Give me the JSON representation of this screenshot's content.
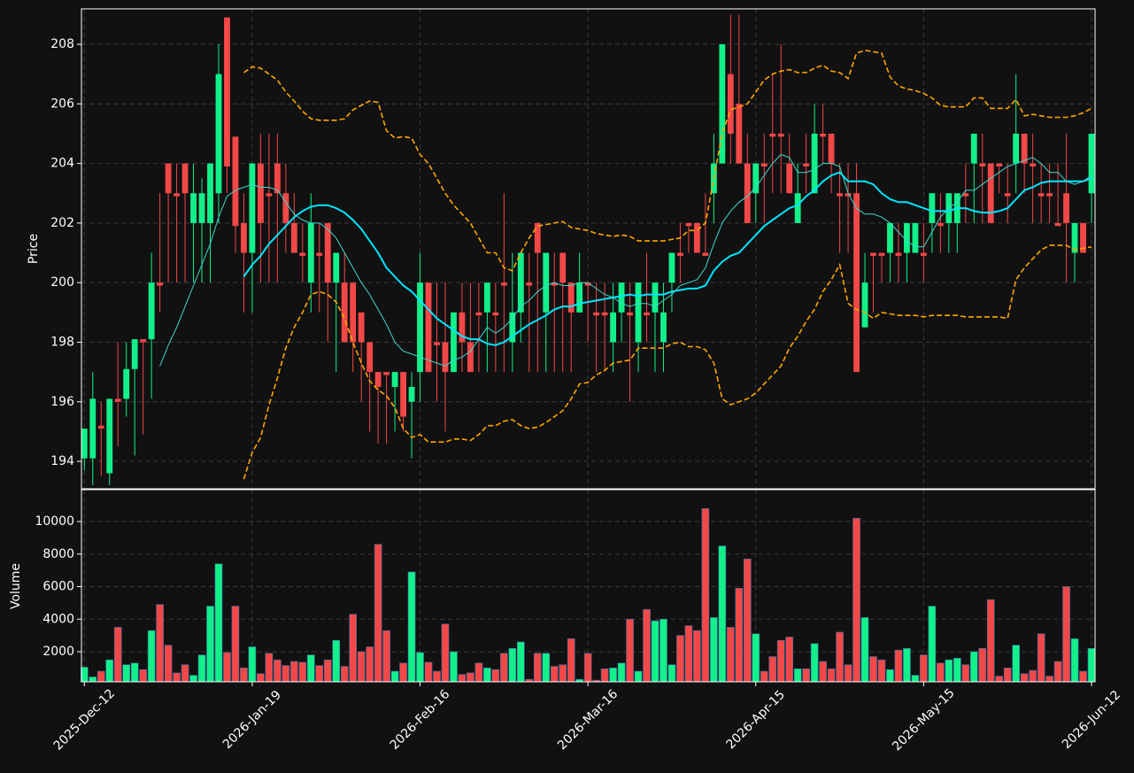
{
  "chart_data": {
    "type": "candlestick",
    "ylabel": "Price",
    "volume_ylabel": "Volume",
    "grid": true,
    "up_color": "#12f08a",
    "down_color": "#f24848",
    "ylim": [
      193.08,
      209.19
    ],
    "yticks": [
      194,
      196,
      198,
      200,
      202,
      204,
      206,
      208
    ],
    "volume_ylim": [
      150,
      11960
    ],
    "volume_yticks": [
      2000,
      4000,
      6000,
      8000,
      10000
    ],
    "categories": [
      "2025-Dec-12",
      null,
      null,
      null,
      null,
      null,
      null,
      null,
      null,
      null,
      null,
      null,
      null,
      null,
      null,
      null,
      null,
      null,
      null,
      null,
      "2026-Jan-19",
      null,
      null,
      null,
      null,
      null,
      null,
      null,
      null,
      null,
      null,
      null,
      null,
      null,
      null,
      null,
      null,
      null,
      null,
      null,
      "2026-Feb-16",
      null,
      null,
      null,
      null,
      null,
      null,
      null,
      null,
      null,
      null,
      null,
      null,
      null,
      null,
      null,
      null,
      null,
      null,
      null,
      "2026-Mar-16",
      null,
      null,
      null,
      null,
      null,
      null,
      null,
      null,
      null,
      null,
      null,
      null,
      null,
      null,
      null,
      null,
      null,
      null,
      null,
      "2026-Apr-15",
      null,
      null,
      null,
      null,
      null,
      null,
      null,
      null,
      null,
      null,
      null,
      null,
      null,
      null,
      null,
      null,
      null,
      null,
      null,
      "2026-May-15",
      null,
      null,
      null,
      null,
      null,
      null,
      null,
      null,
      null,
      null,
      null,
      null,
      null,
      null,
      null,
      null,
      null,
      null,
      null,
      "2026-Jun-12"
    ],
    "open": [
      194.1,
      194.1,
      195.2,
      193.6,
      196.1,
      196.1,
      197.1,
      198.1,
      198.1,
      200.0,
      204.0,
      203.0,
      204.0,
      202.0,
      202.0,
      202.0,
      203.0,
      208.9,
      204.9,
      202.0,
      201.0,
      204.0,
      203.0,
      204.0,
      203.0,
      202.0,
      201.0,
      200.0,
      201.0,
      202.0,
      200.0,
      200.0,
      200.0,
      199.0,
      198.0,
      197.0,
      197.0,
      196.5,
      197.0,
      196.0,
      197.0,
      200.0,
      198.0,
      198.0,
      197.0,
      199.0,
      198.0,
      199.0,
      199.0,
      199.0,
      200.0,
      198.0,
      199.0,
      200.0,
      202.0,
      199.0,
      200.0,
      201.0,
      200.0,
      199.0,
      200.0,
      199.0,
      199.0,
      198.0,
      199.0,
      199.0,
      198.0,
      199.0,
      199.0,
      198.0,
      200.0,
      201.0,
      202.0,
      202.0,
      201.0,
      203.0,
      204.0,
      207.0,
      206.0,
      204.0,
      203.0,
      204.0,
      205.0,
      205.0,
      204.0,
      202.0,
      204.0,
      203.0,
      205.0,
      205.0,
      203.0,
      203.0,
      203.0,
      198.5,
      201.0,
      201.0,
      201.0,
      201.0,
      201.0,
      201.0,
      201.0,
      202.0,
      202.0,
      202.0,
      202.0,
      203.0,
      204.0,
      204.0,
      204.0,
      204.0,
      203.0,
      204.0,
      205.0,
      204.0,
      203.0,
      203.0,
      202.0,
      203.0,
      201.0,
      202.0,
      203.0
    ],
    "close": [
      195.1,
      196.1,
      195.1,
      196.1,
      196.0,
      197.1,
      198.1,
      198.0,
      200.0,
      199.9,
      203.0,
      202.9,
      203.0,
      203.0,
      203.0,
      204.0,
      207.0,
      203.9,
      201.9,
      201.0,
      204.0,
      202.0,
      202.9,
      203.0,
      202.0,
      201.0,
      200.9,
      202.0,
      200.9,
      200.0,
      201.0,
      198.0,
      198.0,
      198.0,
      197.0,
      196.5,
      196.9,
      197.0,
      195.5,
      196.5,
      200.0,
      197.0,
      197.9,
      197.0,
      199.0,
      198.0,
      197.0,
      198.9,
      200.0,
      198.9,
      199.9,
      199.0,
      201.0,
      199.9,
      201.0,
      201.0,
      199.9,
      200.0,
      199.0,
      200.0,
      199.9,
      198.9,
      198.9,
      199.0,
      200.0,
      198.9,
      200.0,
      198.9,
      200.0,
      199.0,
      201.0,
      200.9,
      201.9,
      201.0,
      200.9,
      204.0,
      208.0,
      205.0,
      204.0,
      202.0,
      204.0,
      203.9,
      204.9,
      204.9,
      203.0,
      203.0,
      203.9,
      205.0,
      204.9,
      204.0,
      202.9,
      202.9,
      197.0,
      200.0,
      200.9,
      200.9,
      202.0,
      200.9,
      202.0,
      202.0,
      200.9,
      203.0,
      201.9,
      203.0,
      203.0,
      202.9,
      205.0,
      203.9,
      202.0,
      203.9,
      202.9,
      205.0,
      204.0,
      203.9,
      202.9,
      202.9,
      201.9,
      202.0,
      202.0,
      201.0,
      205.0
    ],
    "high": [
      195.1,
      197.0,
      196.0,
      196.1,
      198.0,
      198.0,
      198.1,
      198.1,
      201.0,
      203.0,
      204.0,
      204.0,
      204.0,
      204.0,
      203.5,
      204.0,
      208.0,
      208.9,
      204.9,
      203.0,
      204.0,
      205.0,
      205.0,
      205.0,
      204.0,
      203.0,
      202.0,
      203.0,
      202.0,
      202.0,
      201.0,
      201.0,
      200.0,
      199.0,
      198.0,
      197.0,
      197.0,
      197.0,
      197.0,
      197.0,
      201.0,
      200.0,
      200.0,
      200.0,
      199.0,
      200.0,
      200.0,
      200.0,
      200.0,
      200.0,
      203.0,
      201.0,
      201.0,
      201.0,
      202.0,
      201.0,
      201.0,
      201.0,
      200.0,
      201.0,
      200.0,
      200.0,
      200.0,
      200.0,
      200.0,
      200.0,
      200.0,
      201.0,
      200.0,
      200.0,
      201.0,
      202.0,
      202.0,
      202.0,
      203.0,
      205.0,
      208.0,
      209.0,
      209.0,
      205.0,
      204.0,
      205.0,
      207.0,
      208.0,
      205.0,
      204.0,
      205.0,
      206.0,
      206.0,
      205.0,
      204.0,
      204.0,
      204.0,
      201.0,
      201.0,
      201.0,
      202.0,
      202.0,
      202.0,
      202.0,
      202.0,
      203.0,
      203.0,
      203.0,
      203.0,
      204.0,
      205.0,
      205.0,
      204.0,
      204.0,
      204.0,
      207.0,
      205.0,
      205.0,
      204.0,
      204.0,
      204.0,
      205.0,
      202.0,
      202.0,
      205.0
    ],
    "low": [
      193.7,
      193.2,
      193.5,
      193.2,
      194.5,
      195.5,
      194.2,
      194.9,
      196.1,
      199.0,
      200.0,
      200.0,
      200.0,
      200.0,
      200.0,
      200.0,
      202.0,
      203.0,
      201.0,
      199.0,
      199.0,
      200.0,
      200.0,
      200.0,
      201.0,
      201.0,
      200.0,
      199.0,
      199.0,
      198.0,
      197.0,
      198.0,
      197.0,
      196.0,
      195.0,
      194.6,
      194.6,
      195.0,
      195.0,
      194.1,
      196.0,
      197.0,
      196.0,
      195.0,
      197.0,
      197.0,
      197.0,
      197.0,
      197.0,
      197.0,
      197.0,
      197.0,
      198.0,
      197.0,
      197.0,
      197.0,
      197.0,
      197.0,
      197.0,
      199.0,
      198.0,
      197.0,
      197.0,
      197.0,
      198.0,
      196.0,
      197.0,
      198.0,
      197.0,
      197.0,
      199.0,
      200.0,
      201.0,
      201.0,
      201.0,
      202.0,
      204.0,
      204.0,
      204.0,
      202.0,
      202.0,
      202.0,
      203.0,
      203.0,
      203.0,
      202.0,
      203.0,
      203.0,
      204.0,
      203.0,
      201.0,
      201.0,
      197.0,
      198.5,
      199.0,
      200.0,
      200.0,
      200.0,
      200.0,
      201.0,
      200.0,
      201.0,
      201.0,
      201.0,
      201.0,
      202.0,
      202.0,
      202.0,
      202.0,
      203.0,
      202.0,
      203.0,
      203.0,
      202.0,
      202.0,
      202.0,
      201.9,
      200.0,
      200.0,
      201.0,
      202.0
    ],
    "volume": [
      1050,
      450,
      800,
      1500,
      3500,
      1200,
      1300,
      900,
      3300,
      4900,
      2400,
      700,
      1200,
      550,
      1800,
      4800,
      7400,
      1950,
      4800,
      1000,
      2300,
      650,
      1900,
      1500,
      1150,
      1400,
      1350,
      1800,
      1150,
      1500,
      2700,
      1100,
      4300,
      2000,
      2300,
      8600,
      3300,
      800,
      1300,
      6900,
      1950,
      1350,
      800,
      3700,
      2000,
      600,
      700,
      1300,
      1000,
      900,
      1900,
      2200,
      2600,
      300,
      1900,
      1900,
      1100,
      1200,
      2800,
      300,
      1900,
      250,
      950,
      1000,
      1300,
      4000,
      800,
      4600,
      3900,
      4000,
      1200,
      3000,
      3600,
      3300,
      10800,
      4100,
      8500,
      3500,
      5900,
      7700,
      3100,
      800,
      1700,
      2700,
      2900,
      950,
      950,
      2500,
      1400,
      950,
      3200,
      1200,
      10200,
      4100,
      1700,
      1500,
      900,
      2100,
      2200,
      550,
      1800,
      4800,
      1300,
      1500,
      1600,
      1200,
      2000,
      2200,
      5200,
      500,
      1000,
      2400,
      650,
      850,
      3100,
      500,
      1400,
      6000,
      2800,
      800,
      2200
    ],
    "overlays": [
      {
        "color": "#00e5ff",
        "dashed": false,
        "values": [
          null,
          null,
          null,
          null,
          null,
          null,
          null,
          null,
          null,
          null,
          null,
          null,
          null,
          null,
          null,
          null,
          null,
          null,
          null,
          200.2,
          200.6,
          200.9,
          201.3,
          201.6,
          201.9,
          202.2,
          202.4,
          202.55,
          202.6,
          202.6,
          202.5,
          202.35,
          202.1,
          201.8,
          201.4,
          201.0,
          200.5,
          200.2,
          199.9,
          199.7,
          199.4,
          199.1,
          198.8,
          198.6,
          198.4,
          198.2,
          198.1,
          198.1,
          197.95,
          197.9,
          198.0,
          198.2,
          198.4,
          198.6,
          198.75,
          198.9,
          199.1,
          199.2,
          199.2,
          199.3,
          199.35,
          199.4,
          199.45,
          199.5,
          199.55,
          199.6,
          199.55,
          199.6,
          199.6,
          199.6,
          199.7,
          199.75,
          199.8,
          199.8,
          199.9,
          200.4,
          200.7,
          200.9,
          201.0,
          201.3,
          201.6,
          201.9,
          202.1,
          202.3,
          202.5,
          202.6,
          202.9,
          203.1,
          203.4,
          203.6,
          203.7,
          203.4,
          203.4,
          203.4,
          203.3,
          203.0,
          202.8,
          202.7,
          202.7,
          202.6,
          202.5,
          202.4,
          202.4,
          202.4,
          202.5,
          202.5,
          202.4,
          202.35,
          202.35,
          202.4,
          202.5,
          202.8,
          203.1,
          203.2,
          203.35,
          203.4,
          203.4,
          203.4,
          203.4,
          203.4,
          203.5
        ]
      },
      {
        "color": "#3fd8d0",
        "dashed": false,
        "values": [
          null,
          null,
          null,
          null,
          null,
          null,
          null,
          null,
          null,
          197.2,
          197.9,
          198.5,
          199.2,
          199.9,
          200.6,
          201.3,
          202.2,
          202.9,
          203.1,
          203.2,
          203.3,
          203.2,
          203.2,
          203.1,
          202.7,
          202.3,
          202.1,
          202.0,
          202.0,
          201.8,
          201.5,
          201.0,
          200.5,
          200.0,
          199.6,
          199.1,
          198.6,
          198.0,
          197.7,
          197.6,
          197.5,
          197.4,
          197.3,
          197.2,
          197.4,
          197.5,
          197.7,
          198.1,
          198.5,
          198.3,
          198.5,
          198.8,
          199.2,
          199.4,
          199.7,
          199.9,
          200.0,
          199.9,
          199.9,
          200.0,
          200.0,
          199.8,
          199.6,
          199.5,
          199.3,
          199.2,
          199.3,
          199.3,
          199.2,
          199.4,
          199.6,
          199.9,
          200.0,
          200.1,
          200.5,
          201.3,
          202.0,
          202.4,
          202.7,
          202.9,
          203.2,
          203.6,
          204.0,
          204.3,
          204.2,
          203.7,
          203.7,
          203.8,
          204.0,
          204.0,
          203.9,
          203.0,
          202.5,
          202.3,
          202.3,
          202.2,
          202.0,
          201.7,
          201.4,
          201.2,
          201.2,
          201.7,
          202.2,
          202.5,
          202.7,
          203.1,
          203.1,
          203.3,
          203.5,
          203.7,
          203.9,
          204.0,
          204.1,
          204.2,
          204.0,
          203.7,
          203.7,
          203.4,
          203.3,
          203.4,
          203.6
        ]
      },
      {
        "color": "#ffa500",
        "dashed": true,
        "values": [
          null,
          null,
          null,
          null,
          null,
          null,
          null,
          null,
          null,
          null,
          null,
          null,
          null,
          null,
          null,
          null,
          null,
          null,
          null,
          207.05,
          207.25,
          207.2,
          207.0,
          206.8,
          206.4,
          206.1,
          205.75,
          205.5,
          205.45,
          205.45,
          205.45,
          205.5,
          205.8,
          205.95,
          206.1,
          206.05,
          205.1,
          204.85,
          204.9,
          204.85,
          204.3,
          204.0,
          203.5,
          203.0,
          202.6,
          202.3,
          202.0,
          201.5,
          201.0,
          201.0,
          200.5,
          200.4,
          201.0,
          201.5,
          201.9,
          201.95,
          202.0,
          202.05,
          201.85,
          201.8,
          201.75,
          201.65,
          201.6,
          201.55,
          201.6,
          201.55,
          201.4,
          201.4,
          201.4,
          201.4,
          201.45,
          201.5,
          201.75,
          201.75,
          202.0,
          203.5,
          205.0,
          205.8,
          205.9,
          206.0,
          206.4,
          206.8,
          207.0,
          207.1,
          207.15,
          207.05,
          207.05,
          207.2,
          207.3,
          207.1,
          207.05,
          206.85,
          207.7,
          207.8,
          207.75,
          207.7,
          206.9,
          206.6,
          206.5,
          206.45,
          206.35,
          206.2,
          205.95,
          205.9,
          205.9,
          205.9,
          206.2,
          206.2,
          205.85,
          205.85,
          205.85,
          206.15,
          205.6,
          205.65,
          205.6,
          205.55,
          205.55,
          205.55,
          205.6,
          205.7,
          205.85
        ]
      },
      {
        "color": "#ffa500",
        "dashed": true,
        "values": [
          null,
          null,
          null,
          null,
          null,
          null,
          null,
          null,
          null,
          null,
          null,
          null,
          null,
          null,
          null,
          null,
          null,
          null,
          null,
          193.4,
          194.3,
          194.8,
          195.9,
          196.8,
          197.8,
          198.5,
          199.0,
          199.6,
          199.7,
          199.6,
          199.35,
          198.8,
          198.0,
          197.3,
          196.7,
          196.4,
          196.2,
          195.8,
          195.1,
          194.8,
          194.9,
          194.65,
          194.65,
          194.65,
          194.75,
          194.75,
          194.7,
          194.9,
          195.2,
          195.2,
          195.35,
          195.4,
          195.2,
          195.1,
          195.15,
          195.3,
          195.5,
          195.7,
          196.1,
          196.6,
          196.65,
          196.9,
          197.05,
          197.3,
          197.35,
          197.4,
          197.8,
          197.8,
          197.8,
          197.8,
          197.95,
          198.0,
          197.85,
          197.85,
          197.75,
          197.3,
          196.1,
          195.9,
          196.0,
          196.1,
          196.3,
          196.6,
          196.9,
          197.2,
          197.8,
          198.2,
          198.7,
          199.1,
          199.7,
          200.1,
          200.6,
          199.3,
          199.1,
          199.0,
          198.8,
          199.0,
          198.95,
          198.9,
          198.9,
          198.9,
          198.85,
          198.9,
          198.9,
          198.9,
          198.9,
          198.85,
          198.85,
          198.85,
          198.85,
          198.85,
          198.8,
          200.1,
          200.5,
          200.8,
          201.1,
          201.25,
          201.25,
          201.25,
          201.1,
          201.15,
          201.2
        ]
      }
    ]
  }
}
